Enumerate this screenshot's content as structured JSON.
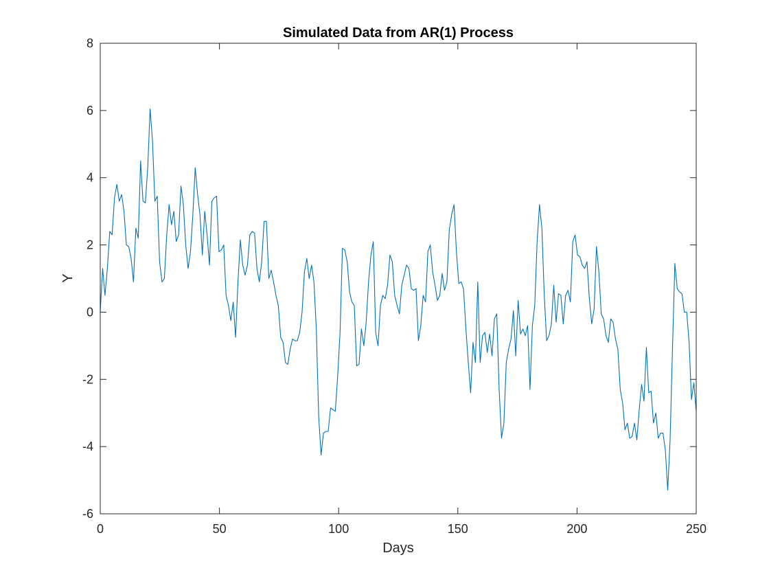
{
  "chart_data": {
    "type": "line",
    "title": "Simulated Data from AR(1) Process",
    "xlabel": "Days",
    "ylabel": "Y",
    "xlim": [
      0,
      250
    ],
    "ylim": [
      -6,
      8
    ],
    "xticks": [
      0,
      50,
      100,
      150,
      200,
      250
    ],
    "yticks": [
      -6,
      -4,
      -2,
      0,
      2,
      4,
      6,
      8
    ],
    "grid": false,
    "legend": "none",
    "series": [
      {
        "color": "#0072BD",
        "y": [
          0.0,
          1.3,
          0.5,
          1.3,
          2.4,
          2.3,
          3.4,
          3.8,
          3.3,
          3.5,
          3.0,
          2.0,
          1.95,
          1.6,
          0.9,
          2.5,
          2.2,
          4.5,
          3.3,
          3.25,
          4.3,
          6.05,
          5.1,
          3.3,
          3.45,
          1.5,
          0.9,
          1.0,
          2.3,
          3.2,
          2.6,
          3.0,
          2.1,
          2.3,
          3.75,
          3.2,
          2.0,
          1.3,
          1.8,
          2.9,
          4.3,
          3.5,
          2.9,
          1.7,
          3.0,
          2.3,
          1.4,
          3.3,
          3.4,
          3.45,
          1.8,
          1.85,
          2.0,
          0.5,
          0.2,
          -0.25,
          0.3,
          -0.75,
          0.9,
          2.15,
          1.4,
          1.1,
          1.4,
          2.3,
          2.4,
          2.35,
          1.3,
          0.9,
          1.5,
          2.7,
          2.7,
          1.0,
          1.25,
          0.9,
          0.5,
          0.2,
          -0.75,
          -0.9,
          -1.5,
          -1.55,
          -1.1,
          -0.8,
          -0.85,
          -0.85,
          -0.6,
          0.0,
          1.2,
          1.6,
          1.0,
          1.4,
          0.9,
          -0.5,
          -3.1,
          -4.25,
          -3.6,
          -3.55,
          -3.55,
          -2.85,
          -2.9,
          -2.95,
          -1.9,
          -0.6,
          1.9,
          1.85,
          1.5,
          0.6,
          0.3,
          0.2,
          -1.6,
          -1.55,
          -0.5,
          -1.0,
          -0.3,
          0.9,
          1.7,
          2.1,
          -0.6,
          -1.0,
          0.2,
          0.5,
          0.4,
          0.8,
          1.7,
          1.5,
          0.5,
          0.2,
          -0.05,
          0.8,
          1.1,
          1.4,
          1.3,
          0.7,
          0.65,
          0.7,
          -0.85,
          -0.4,
          0.5,
          0.3,
          1.8,
          2.0,
          1.2,
          0.8,
          0.35,
          0.5,
          1.15,
          0.65,
          0.9,
          2.45,
          2.9,
          3.2,
          1.8,
          0.85,
          0.9,
          0.7,
          -0.5,
          -1.5,
          -2.4,
          -0.9,
          -1.5,
          0.9,
          -1.5,
          -0.7,
          -0.6,
          -1.2,
          -0.65,
          -1.3,
          -0.2,
          -0.05,
          -2.3,
          -3.75,
          -3.3,
          -1.5,
          -1.1,
          -0.8,
          0.05,
          -1.3,
          0.35,
          -0.65,
          -0.5,
          -0.7,
          -0.4,
          -2.3,
          -0.4,
          0.2,
          2.1,
          3.2,
          2.5,
          0.5,
          -0.85,
          -0.7,
          -0.35,
          0.8,
          -0.3,
          0.55,
          0.5,
          -0.35,
          0.5,
          0.65,
          0.3,
          2.1,
          2.3,
          1.7,
          1.65,
          1.4,
          1.3,
          1.5,
          0.4,
          -0.35,
          0.1,
          1.95,
          1.2,
          -0.05,
          -0.2,
          -0.7,
          -0.9,
          -0.2,
          -0.3,
          -0.8,
          -1.1,
          -2.3,
          -2.7,
          -3.5,
          -3.3,
          -3.75,
          -3.7,
          -3.3,
          -3.8,
          -2.9,
          -2.15,
          -2.65,
          -1.05,
          -2.4,
          -2.35,
          -3.3,
          -3.0,
          -3.75,
          -3.6,
          -3.6,
          -4.1,
          -5.3,
          -3.8,
          -1.1,
          1.45,
          0.7,
          0.6,
          0.55,
          0.0,
          0.0,
          -0.9,
          -2.6,
          -2.1,
          -2.95
        ]
      }
    ]
  }
}
